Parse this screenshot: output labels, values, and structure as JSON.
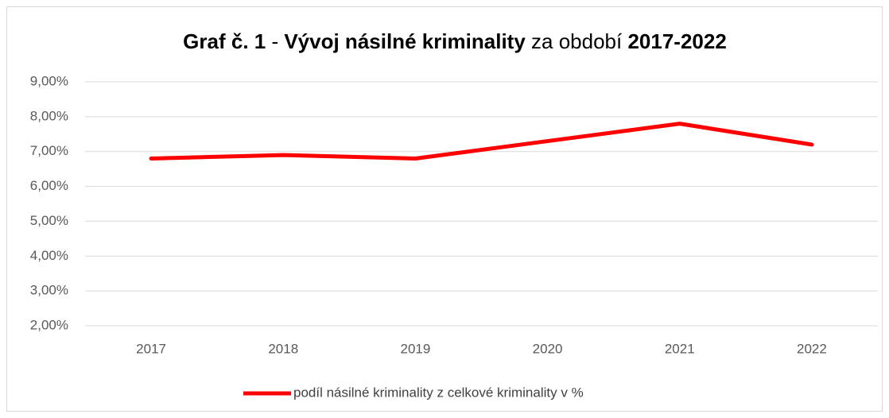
{
  "chart_data": {
    "type": "line",
    "title_parts": [
      {
        "text": "Graf č. 1",
        "bold": true
      },
      {
        "text": " - ",
        "bold": false
      },
      {
        "text": "Vývoj násilné kriminality",
        "bold": true
      },
      {
        "text": " za období ",
        "bold": false
      },
      {
        "text": "2017-2022",
        "bold": true
      }
    ],
    "categories": [
      "2017",
      "2018",
      "2019",
      "2020",
      "2021",
      "2022"
    ],
    "series": [
      {
        "name": "podíl násilné kriminality z celkové kriminality v %",
        "color": "#ff0000",
        "values": [
          6.8,
          6.9,
          6.8,
          7.3,
          7.8,
          7.2
        ]
      }
    ],
    "ylim": [
      2,
      9
    ],
    "yticks": [
      {
        "value": 2,
        "label": "2,00%"
      },
      {
        "value": 3,
        "label": "3,00%"
      },
      {
        "value": 4,
        "label": "4,00%"
      },
      {
        "value": 5,
        "label": "5,00%"
      },
      {
        "value": 6,
        "label": "6,00%"
      },
      {
        "value": 7,
        "label": "7,00%"
      },
      {
        "value": 8,
        "label": "8,00%"
      },
      {
        "value": 9,
        "label": "9,00%"
      }
    ],
    "grid": true,
    "legend": "bottom"
  }
}
